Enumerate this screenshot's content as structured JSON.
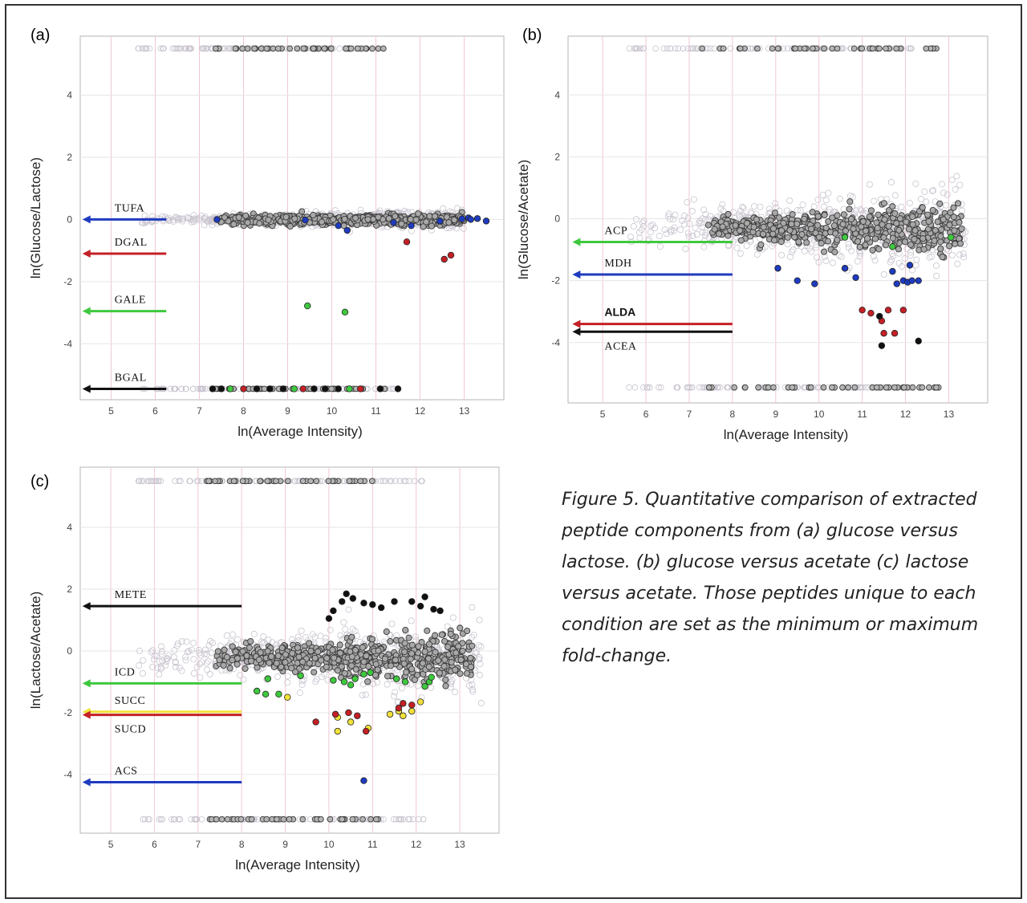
{
  "caption": "Figure 5. Quantitative comparison of extracted peptide components from (a) glucose versus lactose. (b) glucose versus acetate (c) lactose versus acetate. Those peptides unique to each condition are set as the minimum or maximum fold-change.",
  "colors": {
    "blue": "#1f3bbf",
    "red": "#c42026",
    "green": "#3ec83e",
    "black": "#111111",
    "yellow": "#f1e23a",
    "grey": "#8e8e8e",
    "light": "#c9c4cf"
  },
  "chart_data": [
    {
      "type": "scatter",
      "panel": "(a)",
      "xlabel": "ln(Average Intensity)",
      "ylabel": "ln(Glucose/Lactose)",
      "xlim": [
        4.3,
        13.9
      ],
      "ylim": [
        -5.8,
        5.9
      ],
      "xticks": [
        5,
        6,
        7,
        8,
        9,
        10,
        11,
        12,
        13
      ],
      "yticks": [
        -4,
        -2,
        0,
        2,
        4
      ],
      "grid": true,
      "cap_top": 5.5,
      "cap_bottom": -5.45,
      "cloud": {
        "center": 0.0,
        "spread": 0.28,
        "x_range": [
          5.6,
          13.0
        ]
      },
      "annotations": [
        {
          "text": "TUFA",
          "y": 0.0,
          "color": "blue"
        },
        {
          "text": "DGAL",
          "y": -1.1,
          "color": "red"
        },
        {
          "text": "GALE",
          "y": -2.95,
          "color": "green"
        },
        {
          "text": "BGAL",
          "y": -5.45,
          "color": "black"
        }
      ],
      "arrow_x_range": [
        4.35,
        6.25
      ],
      "highlights": [
        {
          "name": "TUFA",
          "color": "blue",
          "points": [
            [
              7.4,
              0.0
            ],
            [
              9.4,
              -0.02
            ],
            [
              10.15,
              -0.2
            ],
            [
              10.35,
              -0.35
            ],
            [
              11.4,
              -0.1
            ],
            [
              11.8,
              -0.2
            ],
            [
              12.45,
              -0.05
            ],
            [
              12.95,
              0.02
            ],
            [
              13.1,
              0.05
            ],
            [
              13.15,
              0.0
            ],
            [
              13.3,
              0.03
            ],
            [
              13.5,
              -0.05
            ]
          ]
        },
        {
          "name": "DGAL",
          "color": "red",
          "points": [
            [
              11.7,
              -0.72
            ],
            [
              12.55,
              -1.28
            ],
            [
              12.7,
              -1.15
            ]
          ]
        },
        {
          "name": "GALE",
          "color": "green",
          "points": [
            [
              9.45,
              -2.78
            ],
            [
              10.3,
              -2.98
            ]
          ]
        },
        {
          "name": "BGAL",
          "color": "mixed",
          "points": [
            [
              7.3,
              -5.45
            ],
            [
              7.5,
              -5.45
            ],
            [
              7.7,
              -5.45
            ],
            [
              8.0,
              -5.45
            ],
            [
              8.3,
              -5.45
            ],
            [
              8.6,
              -5.45
            ],
            [
              8.9,
              -5.45
            ],
            [
              9.15,
              -5.45
            ],
            [
              9.35,
              -5.45
            ],
            [
              9.6,
              -5.45
            ],
            [
              9.85,
              -5.45
            ],
            [
              10.15,
              -5.45
            ],
            [
              10.4,
              -5.45
            ],
            [
              10.65,
              -5.45
            ],
            [
              11.1,
              -5.45
            ],
            [
              11.5,
              -5.45
            ]
          ]
        }
      ]
    },
    {
      "type": "scatter",
      "panel": "(b)",
      "xlabel": "ln(Average Intensity)",
      "ylabel": "ln(Glucose/Acetate)",
      "xlim": [
        4.2,
        13.9
      ],
      "ylim": [
        -5.95,
        5.9
      ],
      "xticks": [
        5,
        6,
        7,
        8,
        9,
        10,
        11,
        12,
        13
      ],
      "yticks": [
        -4,
        -2,
        0,
        2,
        4
      ],
      "grid": true,
      "cap_top": 5.5,
      "cap_bottom": -5.45,
      "cloud": {
        "center": -0.3,
        "spread": 1.1,
        "x_range": [
          5.6,
          13.4
        ]
      },
      "annotations": [
        {
          "text": "ACP",
          "y": -0.75,
          "color": "green"
        },
        {
          "text": "MDH",
          "y": -1.8,
          "color": "blue"
        },
        {
          "text": "ALDA",
          "y": -3.4,
          "color": "red",
          "bold": true
        },
        {
          "text": "ACEA",
          "y": -3.65,
          "color": "black"
        }
      ],
      "arrow_x_range": [
        4.3,
        8.0
      ],
      "highlights": [
        {
          "name": "ACP",
          "color": "green",
          "points": [
            [
              10.6,
              -0.6
            ],
            [
              11.7,
              -0.9
            ],
            [
              13.05,
              -0.6
            ]
          ]
        },
        {
          "name": "MDH",
          "color": "blue",
          "points": [
            [
              9.05,
              -1.6
            ],
            [
              9.5,
              -2.0
            ],
            [
              9.9,
              -2.1
            ],
            [
              10.6,
              -1.6
            ],
            [
              10.85,
              -1.9
            ],
            [
              11.7,
              -1.7
            ],
            [
              11.8,
              -2.1
            ],
            [
              11.95,
              -2.0
            ],
            [
              12.05,
              -2.05
            ],
            [
              12.1,
              -1.5
            ],
            [
              12.15,
              -2.0
            ],
            [
              12.3,
              -2.0
            ]
          ]
        },
        {
          "name": "ALDA",
          "color": "red",
          "points": [
            [
              11.0,
              -2.95
            ],
            [
              11.2,
              -3.05
            ],
            [
              11.45,
              -3.3
            ],
            [
              11.6,
              -2.95
            ],
            [
              11.5,
              -3.7
            ],
            [
              11.75,
              -3.7
            ],
            [
              11.95,
              -2.95
            ]
          ]
        },
        {
          "name": "ACEA",
          "color": "black",
          "points": [
            [
              11.4,
              -3.15
            ],
            [
              11.45,
              -4.1
            ],
            [
              12.3,
              -3.95
            ]
          ]
        }
      ]
    },
    {
      "type": "scatter",
      "panel": "(c)",
      "xlabel": "ln(Average Intensity)",
      "ylabel": "ln(Lactose/Acetate)",
      "xlim": [
        4.3,
        13.9
      ],
      "ylim": [
        -5.9,
        5.95
      ],
      "xticks": [
        5,
        6,
        7,
        8,
        9,
        10,
        11,
        12,
        13
      ],
      "yticks": [
        -4,
        -2,
        0,
        2,
        4
      ],
      "grid": true,
      "cap_top": 5.5,
      "cap_bottom": -5.45,
      "cloud": {
        "center": -0.2,
        "spread": 1.05,
        "x_range": [
          5.6,
          13.5
        ]
      },
      "annotations": [
        {
          "text": "METE",
          "y": 1.45,
          "color": "black"
        },
        {
          "text": "ICD",
          "y": -1.05,
          "color": "green"
        },
        {
          "text": "SUCC",
          "y": -1.97,
          "color": "yellow"
        },
        {
          "text": "SUCD",
          "y": -2.07,
          "color": "red"
        },
        {
          "text": "ACS",
          "y": -4.25,
          "color": "blue"
        }
      ],
      "arrow_x_range": [
        4.35,
        8.0
      ],
      "highlights": [
        {
          "name": "METE",
          "color": "black",
          "points": [
            [
              10.0,
              1.05
            ],
            [
              10.1,
              1.3
            ],
            [
              10.3,
              1.6
            ],
            [
              10.4,
              1.85
            ],
            [
              10.55,
              1.7
            ],
            [
              10.8,
              1.55
            ],
            [
              11.0,
              1.5
            ],
            [
              11.2,
              1.4
            ],
            [
              11.5,
              1.6
            ],
            [
              11.9,
              1.6
            ],
            [
              12.1,
              1.45
            ],
            [
              12.2,
              1.75
            ],
            [
              12.4,
              1.35
            ],
            [
              12.55,
              1.3
            ]
          ]
        },
        {
          "name": "ICD",
          "color": "green",
          "points": [
            [
              8.35,
              -1.3
            ],
            [
              8.55,
              -1.4
            ],
            [
              8.6,
              -0.9
            ],
            [
              8.85,
              -1.4
            ],
            [
              9.35,
              -0.8
            ],
            [
              10.1,
              -0.95
            ],
            [
              10.35,
              -1.0
            ],
            [
              10.5,
              -1.1
            ],
            [
              10.6,
              -0.9
            ],
            [
              10.8,
              -0.75
            ],
            [
              10.95,
              -0.7
            ],
            [
              11.55,
              -0.9
            ],
            [
              11.75,
              -1.0
            ],
            [
              12.2,
              -1.15
            ],
            [
              12.3,
              -1.0
            ],
            [
              12.35,
              -0.85
            ]
          ]
        },
        {
          "name": "SUCC",
          "color": "yellow",
          "points": [
            [
              9.05,
              -1.5
            ],
            [
              10.2,
              -2.15
            ],
            [
              10.2,
              -2.6
            ],
            [
              10.5,
              -2.3
            ],
            [
              10.9,
              -2.5
            ],
            [
              11.4,
              -2.05
            ],
            [
              11.6,
              -1.95
            ],
            [
              11.7,
              -2.1
            ],
            [
              11.9,
              -1.95
            ],
            [
              12.1,
              -1.65
            ]
          ]
        },
        {
          "name": "SUCD",
          "color": "red",
          "points": [
            [
              9.7,
              -2.3
            ],
            [
              10.15,
              -2.05
            ],
            [
              10.45,
              -2.0
            ],
            [
              10.65,
              -2.1
            ],
            [
              10.85,
              -2.6
            ],
            [
              11.6,
              -1.85
            ],
            [
              11.7,
              -1.7
            ],
            [
              11.9,
              -1.75
            ]
          ]
        },
        {
          "name": "ACS",
          "color": "blue",
          "points": [
            [
              10.8,
              -4.2
            ]
          ]
        }
      ]
    }
  ]
}
